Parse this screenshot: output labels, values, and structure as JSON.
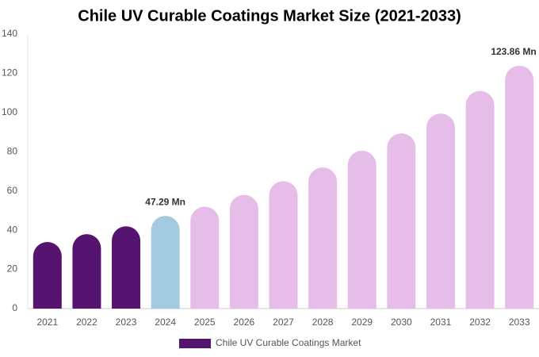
{
  "chart_data": {
    "type": "bar",
    "title": "Chile UV Curable Coatings Market Size (2021-2033)",
    "categories": [
      "2021",
      "2022",
      "2023",
      "2024",
      "2025",
      "2026",
      "2027",
      "2028",
      "2029",
      "2030",
      "2031",
      "2032",
      "2033"
    ],
    "series": [
      {
        "name": "Chile UV Curable Coatings Market",
        "color": "#561471",
        "colors": [
          "#561471",
          "#561471",
          "#561471",
          "#a4cadf",
          "#e6bde8",
          "#e6bde8",
          "#e6bde8",
          "#e6bde8",
          "#e6bde8",
          "#e6bde8",
          "#e6bde8",
          "#e6bde8",
          "#e6bde8"
        ],
        "values": [
          34,
          38,
          42,
          47.29,
          52,
          58,
          65,
          72,
          80.5,
          89.4,
          99.5,
          111,
          123.86
        ],
        "value_labels": [
          null,
          null,
          null,
          "47.29 Mn",
          null,
          null,
          null,
          null,
          null,
          null,
          null,
          null,
          "123.86 Mn"
        ]
      }
    ],
    "ylim": [
      0,
      140
    ],
    "yticks": [
      0,
      20,
      40,
      60,
      80,
      100,
      120,
      140
    ],
    "grid": false
  }
}
